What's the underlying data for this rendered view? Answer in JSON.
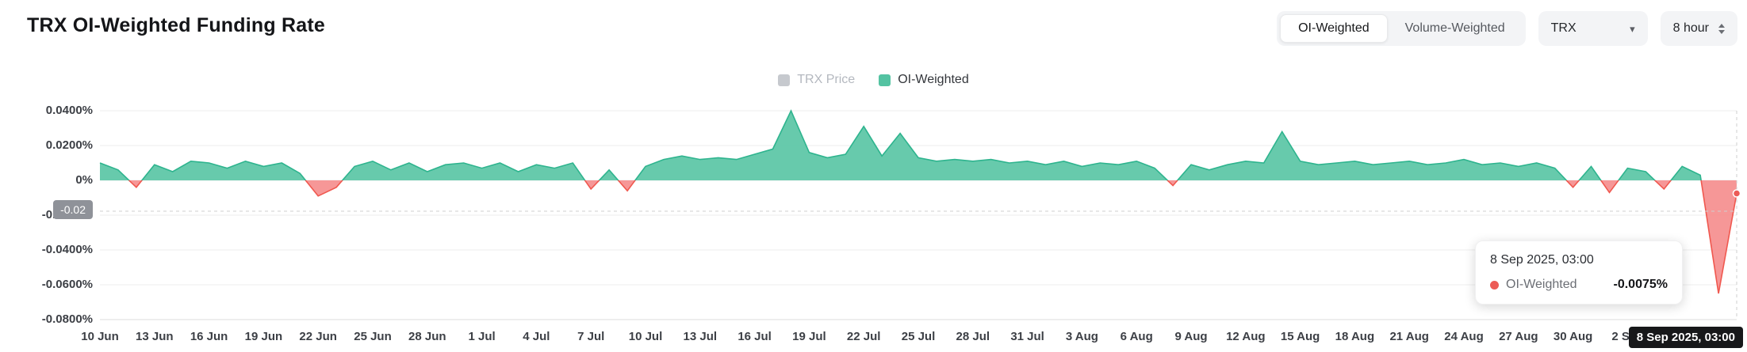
{
  "header": {
    "title": "TRX OI-Weighted Funding Rate",
    "toggle": {
      "options": [
        {
          "label": "OI-Weighted",
          "selected": true
        },
        {
          "label": "Volume-Weighted",
          "selected": false
        }
      ]
    },
    "symbol_select": {
      "value": "TRX"
    },
    "interval_select": {
      "value": "8 hour"
    }
  },
  "legend": {
    "items": [
      {
        "label": "TRX Price",
        "color": "#c6c9ce",
        "active": false
      },
      {
        "label": "OI-Weighted",
        "color": "#54c3a2",
        "active": true
      }
    ]
  },
  "pointer": {
    "y_label": "-0.02",
    "x_label": "8 Sep 2025, 03:00"
  },
  "tooltip": {
    "title": "8 Sep 2025, 03:00",
    "series_label": "OI-Weighted",
    "value": "-0.0075%",
    "marker_color": "#ec5b56"
  },
  "chart_data": {
    "type": "area",
    "title": "TRX OI-Weighted Funding Rate",
    "unit": "%",
    "ylim": [
      -0.08,
      0.04
    ],
    "grid": true,
    "legend_position": "top",
    "positive_color": "#57c4a3",
    "positive_line_color": "#2eb48e",
    "negative_color": "#f58c8c",
    "negative_line_color": "#f0584f",
    "y_ticks": [
      "0.0400%",
      "0.0200%",
      "0%",
      "-0.0200%",
      "-0.0400%",
      "-0.0600%",
      "-0.0800%"
    ],
    "y_tick_values": [
      0.04,
      0.02,
      0,
      -0.02,
      -0.04,
      -0.06,
      -0.08
    ],
    "x_ticks": [
      "10 Jun",
      "13 Jun",
      "16 Jun",
      "19 Jun",
      "22 Jun",
      "25 Jun",
      "28 Jun",
      "1 Jul",
      "4 Jul",
      "7 Jul",
      "10 Jul",
      "13 Jul",
      "16 Jul",
      "19 Jul",
      "22 Jul",
      "25 Jul",
      "28 Jul",
      "31 Jul",
      "3 Aug",
      "6 Aug",
      "9 Aug",
      "12 Aug",
      "15 Aug",
      "18 Aug",
      "21 Aug",
      "24 Aug",
      "27 Aug",
      "30 Aug",
      "2 Sep"
    ],
    "x": [
      "10 Jun",
      "11 Jun",
      "12 Jun",
      "13 Jun",
      "14 Jun",
      "15 Jun",
      "16 Jun",
      "17 Jun",
      "18 Jun",
      "19 Jun",
      "20 Jun",
      "21 Jun",
      "22 Jun",
      "23 Jun",
      "24 Jun",
      "25 Jun",
      "26 Jun",
      "27 Jun",
      "28 Jun",
      "29 Jun",
      "30 Jun",
      "1 Jul",
      "2 Jul",
      "3 Jul",
      "4 Jul",
      "5 Jul",
      "6 Jul",
      "7 Jul",
      "8 Jul",
      "9 Jul",
      "10 Jul",
      "11 Jul",
      "12 Jul",
      "13 Jul",
      "14 Jul",
      "15 Jul",
      "16 Jul",
      "17 Jul",
      "18 Jul",
      "19 Jul",
      "20 Jul",
      "21 Jul",
      "22 Jul",
      "23 Jul",
      "24 Jul",
      "25 Jul",
      "26 Jul",
      "27 Jul",
      "28 Jul",
      "29 Jul",
      "30 Jul",
      "31 Jul",
      "1 Aug",
      "2 Aug",
      "3 Aug",
      "4 Aug",
      "5 Aug",
      "6 Aug",
      "7 Aug",
      "8 Aug",
      "9 Aug",
      "10 Aug",
      "11 Aug",
      "12 Aug",
      "13 Aug",
      "14 Aug",
      "15 Aug",
      "16 Aug",
      "17 Aug",
      "18 Aug",
      "19 Aug",
      "20 Aug",
      "21 Aug",
      "22 Aug",
      "23 Aug",
      "24 Aug",
      "25 Aug",
      "26 Aug",
      "27 Aug",
      "28 Aug",
      "29 Aug",
      "30 Aug",
      "31 Aug",
      "1 Sep",
      "2 Sep",
      "3 Sep",
      "4 Sep",
      "5 Sep",
      "6 Sep",
      "7 Sep",
      "8 Sep 03:00"
    ],
    "series": [
      {
        "name": "OI-Weighted",
        "values": [
          0.01,
          0.006,
          -0.004,
          0.009,
          0.005,
          0.011,
          0.01,
          0.007,
          0.011,
          0.008,
          0.01,
          0.004,
          -0.009,
          -0.004,
          0.008,
          0.011,
          0.006,
          0.01,
          0.005,
          0.009,
          0.01,
          0.007,
          0.01,
          0.005,
          0.009,
          0.007,
          0.01,
          -0.005,
          0.006,
          -0.006,
          0.008,
          0.012,
          0.014,
          0.012,
          0.013,
          0.012,
          0.015,
          0.018,
          0.04,
          0.016,
          0.013,
          0.015,
          0.031,
          0.014,
          0.027,
          0.013,
          0.011,
          0.012,
          0.011,
          0.012,
          0.01,
          0.011,
          0.009,
          0.011,
          0.008,
          0.01,
          0.009,
          0.011,
          0.007,
          -0.003,
          0.009,
          0.006,
          0.009,
          0.011,
          0.01,
          0.028,
          0.011,
          0.009,
          0.01,
          0.011,
          0.009,
          0.01,
          0.011,
          0.009,
          0.01,
          0.012,
          0.009,
          0.01,
          0.008,
          0.01,
          0.007,
          -0.004,
          0.008,
          -0.007,
          0.007,
          0.005,
          -0.005,
          0.008,
          0.003,
          -0.065,
          -0.0075
        ]
      }
    ],
    "hover_point": {
      "x": "8 Sep 03:00",
      "value": -0.0075
    }
  }
}
